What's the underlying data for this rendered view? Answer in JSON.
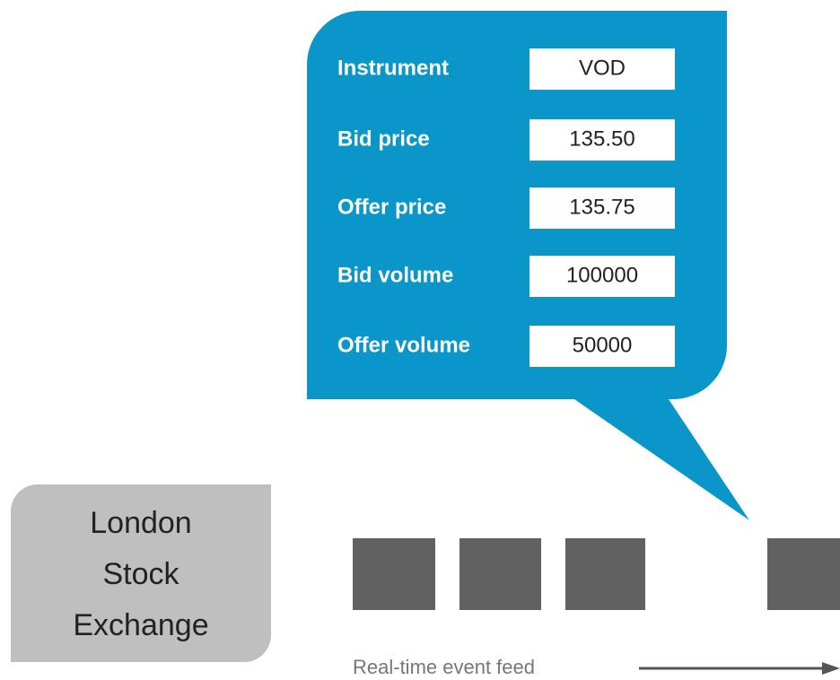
{
  "callout": {
    "fields": [
      {
        "label": "Instrument",
        "value": "VOD"
      },
      {
        "label": "Bid price",
        "value": "135.50"
      },
      {
        "label": "Offer price",
        "value": "135.75"
      },
      {
        "label": "Bid volume",
        "value": "100000"
      },
      {
        "label": "Offer volume",
        "value": "50000"
      }
    ]
  },
  "source": {
    "lines": [
      "London",
      "Stock",
      "Exchange"
    ]
  },
  "feed": {
    "label": "Real-time event feed"
  }
}
